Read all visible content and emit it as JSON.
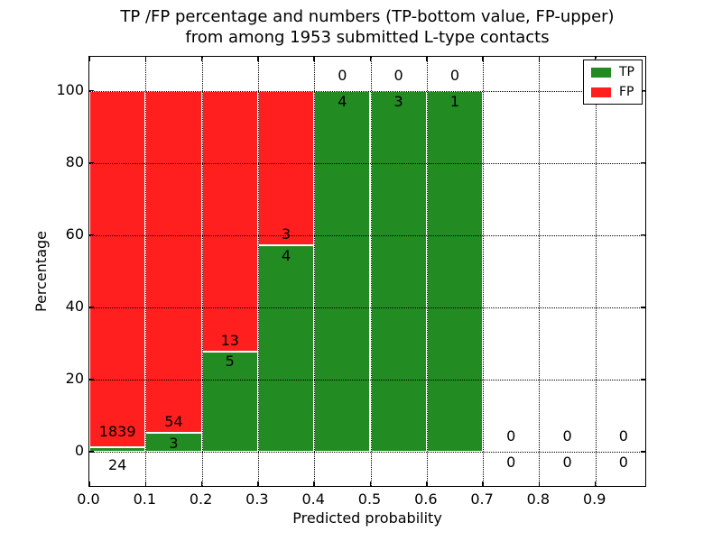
{
  "title": {
    "line1": "TP /FP percentage and numbers (TP-bottom value, FP-upper)",
    "line2": "from among 1953 submitted L-type contacts"
  },
  "chart_data": {
    "type": "bar",
    "stacked": true,
    "title": "TP /FP percentage and numbers (TP-bottom value, FP-upper)\nfrom among 1953 submitted L-type contacts",
    "xlabel": "Predicted probability",
    "ylabel": "Percentage",
    "xlim": [
      0,
      0.99
    ],
    "ylim": [
      -10,
      110
    ],
    "grid": true,
    "total_contacts": 1953,
    "x_ticks": [
      "0.0",
      "0.1",
      "0.2",
      "0.3",
      "0.4",
      "0.5",
      "0.6",
      "0.7",
      "0.8",
      "0.9"
    ],
    "y_ticks": [
      "0",
      "20",
      "40",
      "60",
      "80",
      "100"
    ],
    "colors": {
      "tp": "#228b22",
      "fp": "#ff1f1f"
    },
    "legend": {
      "position": "upper right",
      "entries": [
        {
          "label": "TP",
          "color": "#228b22"
        },
        {
          "label": "FP",
          "color": "#ff1f1f"
        }
      ]
    },
    "bins": [
      {
        "range": [
          0.0,
          0.1
        ],
        "tp_count": 24,
        "fp_count": 1839,
        "tp_pct": 1.3,
        "fp_pct": 98.7
      },
      {
        "range": [
          0.1,
          0.2
        ],
        "tp_count": 3,
        "fp_count": 54,
        "tp_pct": 5.3,
        "fp_pct": 94.7
      },
      {
        "range": [
          0.2,
          0.3
        ],
        "tp_count": 5,
        "fp_count": 13,
        "tp_pct": 27.8,
        "fp_pct": 72.2
      },
      {
        "range": [
          0.3,
          0.4
        ],
        "tp_count": 4,
        "fp_count": 3,
        "tp_pct": 57.1,
        "fp_pct": 42.9
      },
      {
        "range": [
          0.4,
          0.5
        ],
        "tp_count": 4,
        "fp_count": 0,
        "tp_pct": 100,
        "fp_pct": 0
      },
      {
        "range": [
          0.5,
          0.6
        ],
        "tp_count": 3,
        "fp_count": 0,
        "tp_pct": 100,
        "fp_pct": 0
      },
      {
        "range": [
          0.6,
          0.7
        ],
        "tp_count": 1,
        "fp_count": 0,
        "tp_pct": 100,
        "fp_pct": 0
      },
      {
        "range": [
          0.7,
          0.8
        ],
        "tp_count": 0,
        "fp_count": 0,
        "tp_pct": 0,
        "fp_pct": 0
      },
      {
        "range": [
          0.8,
          0.9
        ],
        "tp_count": 0,
        "fp_count": 0,
        "tp_pct": 0,
        "fp_pct": 0
      },
      {
        "range": [
          0.9,
          1.0
        ],
        "tp_count": 0,
        "fp_count": 0,
        "tp_pct": 0,
        "fp_pct": 0
      }
    ]
  }
}
